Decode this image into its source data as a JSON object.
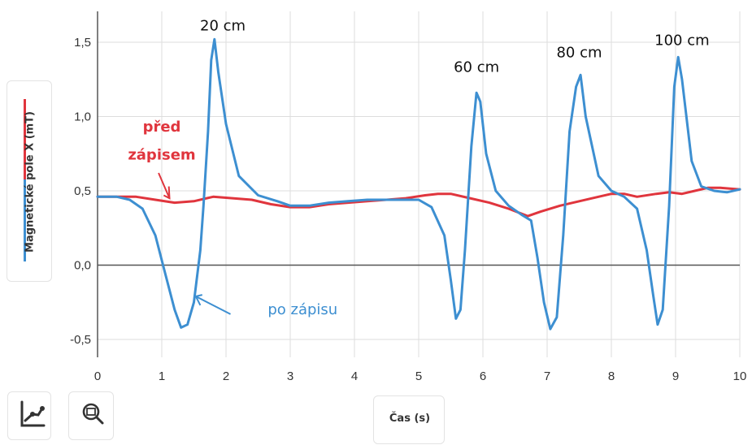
{
  "chart_data": {
    "type": "line",
    "title": "",
    "xlabel": "Čas (s)",
    "ylabel": "Magnetické pole X (mT)",
    "xlim": [
      0,
      10
    ],
    "ylim": [
      -0.6,
      1.7
    ],
    "grid": true,
    "x_ticks": [
      0,
      1,
      2,
      3,
      4,
      5,
      6,
      7,
      8,
      9,
      10
    ],
    "x_tick_labels": [
      "0",
      "1",
      "2",
      "3",
      "4",
      "5",
      "6",
      "7",
      "8",
      "9",
      "10"
    ],
    "y_ticks": [
      -0.5,
      0,
      0.5,
      1,
      1.5
    ],
    "y_tick_labels": [
      "-0,5",
      "0,0",
      "0,5",
      "1,0",
      "1,5"
    ],
    "series": [
      {
        "key": "red",
        "color": "#e0353d",
        "points": [
          [
            0,
            0.46
          ],
          [
            0.3,
            0.46
          ],
          [
            0.6,
            0.46
          ],
          [
            0.9,
            0.44
          ],
          [
            1.2,
            0.42
          ],
          [
            1.5,
            0.43
          ],
          [
            1.8,
            0.46
          ],
          [
            2.1,
            0.45
          ],
          [
            2.4,
            0.44
          ],
          [
            2.7,
            0.41
          ],
          [
            3.0,
            0.39
          ],
          [
            3.3,
            0.39
          ],
          [
            3.6,
            0.41
          ],
          [
            3.9,
            0.42
          ],
          [
            4.2,
            0.43
          ],
          [
            4.5,
            0.44
          ],
          [
            4.8,
            0.45
          ],
          [
            5.1,
            0.47
          ],
          [
            5.3,
            0.48
          ],
          [
            5.5,
            0.48
          ],
          [
            5.8,
            0.45
          ],
          [
            6.1,
            0.42
          ],
          [
            6.4,
            0.38
          ],
          [
            6.7,
            0.33
          ],
          [
            6.9,
            0.36
          ],
          [
            7.2,
            0.4
          ],
          [
            7.5,
            0.43
          ],
          [
            7.8,
            0.46
          ],
          [
            8.0,
            0.48
          ],
          [
            8.2,
            0.48
          ],
          [
            8.4,
            0.46
          ],
          [
            8.7,
            0.48
          ],
          [
            8.9,
            0.49
          ],
          [
            9.1,
            0.48
          ],
          [
            9.3,
            0.5
          ],
          [
            9.5,
            0.52
          ],
          [
            9.7,
            0.52
          ],
          [
            10.0,
            0.51
          ]
        ]
      },
      {
        "key": "blue",
        "color": "#3d8fd1",
        "points": [
          [
            0,
            0.46
          ],
          [
            0.3,
            0.46
          ],
          [
            0.5,
            0.44
          ],
          [
            0.7,
            0.38
          ],
          [
            0.9,
            0.2
          ],
          [
            1.05,
            -0.05
          ],
          [
            1.2,
            -0.3
          ],
          [
            1.3,
            -0.42
          ],
          [
            1.4,
            -0.4
          ],
          [
            1.5,
            -0.25
          ],
          [
            1.6,
            0.1
          ],
          [
            1.65,
            0.4
          ],
          [
            1.72,
            0.9
          ],
          [
            1.77,
            1.38
          ],
          [
            1.82,
            1.52
          ],
          [
            1.88,
            1.3
          ],
          [
            2.0,
            0.95
          ],
          [
            2.2,
            0.6
          ],
          [
            2.5,
            0.47
          ],
          [
            2.8,
            0.43
          ],
          [
            3.0,
            0.4
          ],
          [
            3.3,
            0.4
          ],
          [
            3.6,
            0.42
          ],
          [
            3.9,
            0.43
          ],
          [
            4.2,
            0.44
          ],
          [
            4.5,
            0.44
          ],
          [
            4.8,
            0.44
          ],
          [
            5.0,
            0.44
          ],
          [
            5.2,
            0.39
          ],
          [
            5.4,
            0.2
          ],
          [
            5.5,
            -0.1
          ],
          [
            5.58,
            -0.36
          ],
          [
            5.65,
            -0.3
          ],
          [
            5.72,
            0.1
          ],
          [
            5.82,
            0.8
          ],
          [
            5.9,
            1.16
          ],
          [
            5.96,
            1.1
          ],
          [
            6.05,
            0.75
          ],
          [
            6.2,
            0.5
          ],
          [
            6.4,
            0.4
          ],
          [
            6.6,
            0.34
          ],
          [
            6.75,
            0.3
          ],
          [
            6.85,
            0.05
          ],
          [
            6.95,
            -0.25
          ],
          [
            7.05,
            -0.43
          ],
          [
            7.15,
            -0.35
          ],
          [
            7.25,
            0.2
          ],
          [
            7.35,
            0.9
          ],
          [
            7.45,
            1.2
          ],
          [
            7.52,
            1.28
          ],
          [
            7.6,
            1.0
          ],
          [
            7.8,
            0.6
          ],
          [
            8.0,
            0.5
          ],
          [
            8.2,
            0.46
          ],
          [
            8.4,
            0.38
          ],
          [
            8.55,
            0.1
          ],
          [
            8.65,
            -0.2
          ],
          [
            8.72,
            -0.4
          ],
          [
            8.8,
            -0.3
          ],
          [
            8.9,
            0.4
          ],
          [
            8.98,
            1.2
          ],
          [
            9.04,
            1.4
          ],
          [
            9.1,
            1.25
          ],
          [
            9.25,
            0.7
          ],
          [
            9.4,
            0.53
          ],
          [
            9.6,
            0.5
          ],
          [
            9.8,
            0.49
          ],
          [
            10.0,
            0.51
          ]
        ]
      }
    ],
    "annotations": [
      {
        "text": "20 cm",
        "x": 1.95,
        "y": 1.58,
        "color": "#111111"
      },
      {
        "text": "60 cm",
        "x": 5.9,
        "y": 1.3,
        "color": "#111111"
      },
      {
        "text": "80 cm",
        "x": 7.5,
        "y": 1.4,
        "color": "#111111"
      },
      {
        "text": "100 cm",
        "x": 9.1,
        "y": 1.48,
        "color": "#111111"
      },
      {
        "text": "před",
        "x": 1.0,
        "y": 0.9,
        "color": "#e0353d"
      },
      {
        "text": "zápisem",
        "x": 1.0,
        "y": 0.71,
        "color": "#e0353d"
      },
      {
        "text": "po zápisu",
        "x": 2.65,
        "y": -0.33,
        "color": "#3d8fd1"
      }
    ]
  },
  "toolbar": {
    "chart_icon": "line-chart-icon",
    "zoom_icon": "zoom-icon"
  }
}
